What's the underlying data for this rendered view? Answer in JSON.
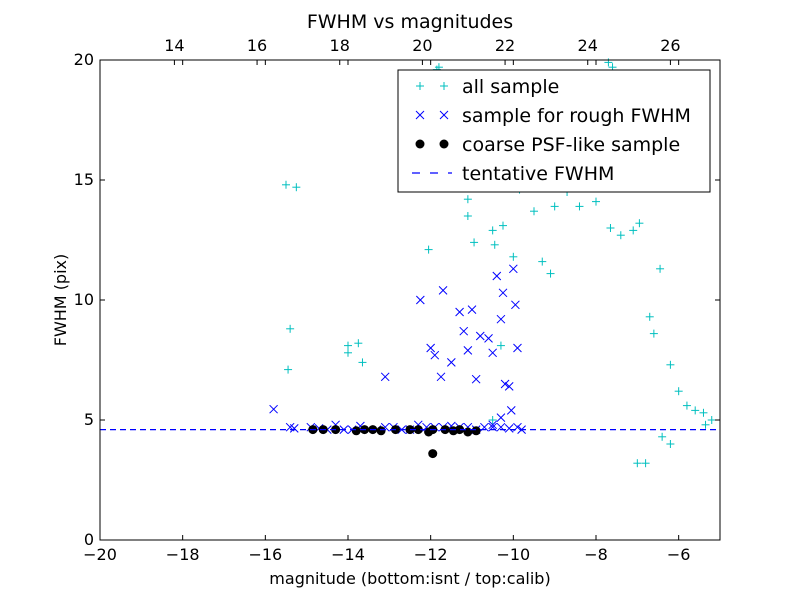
{
  "chart_data": {
    "type": "scatter",
    "title": "FWHM vs magnitudes",
    "xlabel": "magnitude (bottom:isnt / top:calib)",
    "ylabel": "FWHM (pix)",
    "xlim": [
      -20,
      -5
    ],
    "ylim": [
      0,
      20
    ],
    "xticks": [
      -20,
      -18,
      -16,
      -14,
      -12,
      -10,
      -8,
      -6
    ],
    "xtick_labels": [
      "−20",
      "−18",
      "−16",
      "−14",
      "−12",
      "−10",
      "−8",
      "−6"
    ],
    "yticks": [
      0,
      5,
      10,
      15,
      20
    ],
    "ytick_labels": [
      "0",
      "5",
      "10",
      "15",
      "20"
    ],
    "top_axis": {
      "offset": 32.2,
      "ticks": [
        14,
        16,
        18,
        20,
        22,
        24,
        26
      ],
      "tick_labels": [
        "14",
        "16",
        "18",
        "20",
        "22",
        "24",
        "26"
      ]
    },
    "grid": false,
    "legend_position": "top-right",
    "series": [
      {
        "name": "all sample",
        "marker": "+",
        "color": "#00bfbf",
        "points": [
          [
            -15.5,
            14.8
          ],
          [
            -15.25,
            14.7
          ],
          [
            -15.4,
            8.8
          ],
          [
            -15.45,
            7.1
          ],
          [
            -14.0,
            8.1
          ],
          [
            -14.0,
            7.8
          ],
          [
            -13.75,
            8.2
          ],
          [
            -13.65,
            7.4
          ],
          [
            -12.05,
            12.1
          ],
          [
            -11.85,
            19.6
          ],
          [
            -11.8,
            19.7
          ],
          [
            -11.1,
            14.2
          ],
          [
            -11.1,
            13.5
          ],
          [
            -10.95,
            12.4
          ],
          [
            -10.5,
            12.9
          ],
          [
            -10.45,
            12.3
          ],
          [
            -10.25,
            13.1
          ],
          [
            -10.0,
            11.8
          ],
          [
            -9.85,
            14.6
          ],
          [
            -9.7,
            16.0
          ],
          [
            -9.5,
            13.7
          ],
          [
            -9.2,
            15.2
          ],
          [
            -9.0,
            13.9
          ],
          [
            -8.7,
            14.5
          ],
          [
            -8.4,
            13.9
          ],
          [
            -8.0,
            14.1
          ],
          [
            -7.65,
            13.0
          ],
          [
            -7.4,
            12.7
          ],
          [
            -7.1,
            12.9
          ],
          [
            -6.95,
            13.2
          ],
          [
            -7.7,
            19.9
          ],
          [
            -7.6,
            19.7
          ],
          [
            -6.45,
            11.3
          ],
          [
            -6.7,
            9.3
          ],
          [
            -6.6,
            8.6
          ],
          [
            -6.2,
            7.3
          ],
          [
            -6.0,
            6.2
          ],
          [
            -5.8,
            5.6
          ],
          [
            -5.6,
            5.4
          ],
          [
            -5.4,
            5.3
          ],
          [
            -5.35,
            4.8
          ],
          [
            -5.2,
            5.0
          ],
          [
            -6.8,
            3.2
          ],
          [
            -7.0,
            3.2
          ],
          [
            -6.4,
            4.3
          ],
          [
            -6.2,
            4.0
          ],
          [
            -10.5,
            5.0
          ],
          [
            -10.3,
            8.1
          ],
          [
            -9.3,
            11.6
          ],
          [
            -9.1,
            11.1
          ]
        ]
      },
      {
        "name": "sample for rough FWHM",
        "marker": "x",
        "color": "#0000ff",
        "points": [
          [
            -15.8,
            5.45
          ],
          [
            -15.4,
            4.7
          ],
          [
            -15.3,
            4.65
          ],
          [
            -14.9,
            4.7
          ],
          [
            -14.7,
            4.65
          ],
          [
            -14.5,
            4.6
          ],
          [
            -14.3,
            4.8
          ],
          [
            -14.1,
            4.6
          ],
          [
            -13.9,
            4.6
          ],
          [
            -13.7,
            4.75
          ],
          [
            -13.5,
            4.6
          ],
          [
            -13.3,
            4.6
          ],
          [
            -13.1,
            4.7
          ],
          [
            -12.9,
            4.7
          ],
          [
            -12.7,
            4.6
          ],
          [
            -12.5,
            4.6
          ],
          [
            -12.3,
            4.8
          ],
          [
            -12.1,
            4.7
          ],
          [
            -11.9,
            4.7
          ],
          [
            -11.7,
            4.7
          ],
          [
            -11.5,
            4.75
          ],
          [
            -11.3,
            4.7
          ],
          [
            -11.1,
            4.7
          ],
          [
            -10.9,
            4.6
          ],
          [
            -10.7,
            4.7
          ],
          [
            -10.5,
            4.7
          ],
          [
            -10.3,
            4.7
          ],
          [
            -10.1,
            4.65
          ],
          [
            -9.9,
            4.7
          ],
          [
            -9.8,
            4.6
          ],
          [
            -13.1,
            6.8
          ],
          [
            -12.25,
            10.0
          ],
          [
            -12.0,
            8.0
          ],
          [
            -11.9,
            7.7
          ],
          [
            -11.75,
            6.8
          ],
          [
            -11.7,
            10.4
          ],
          [
            -11.5,
            7.4
          ],
          [
            -11.3,
            9.5
          ],
          [
            -11.2,
            8.7
          ],
          [
            -11.1,
            7.9
          ],
          [
            -11.0,
            9.6
          ],
          [
            -10.9,
            6.7
          ],
          [
            -10.8,
            8.5
          ],
          [
            -10.6,
            8.4
          ],
          [
            -10.5,
            7.8
          ],
          [
            -10.4,
            11.0
          ],
          [
            -10.3,
            9.2
          ],
          [
            -10.25,
            10.3
          ],
          [
            -10.2,
            6.5
          ],
          [
            -10.1,
            6.4
          ],
          [
            -10.0,
            11.3
          ],
          [
            -9.95,
            9.8
          ],
          [
            -9.9,
            8.0
          ],
          [
            -10.05,
            5.4
          ],
          [
            -10.3,
            5.1
          ],
          [
            -10.5,
            4.8
          ]
        ]
      },
      {
        "name": "coarse PSF-like sample",
        "marker": "o",
        "color": "#000000",
        "points": [
          [
            -14.85,
            4.6
          ],
          [
            -14.6,
            4.6
          ],
          [
            -14.3,
            4.6
          ],
          [
            -13.8,
            4.55
          ],
          [
            -13.6,
            4.6
          ],
          [
            -13.4,
            4.6
          ],
          [
            -13.2,
            4.55
          ],
          [
            -12.85,
            4.6
          ],
          [
            -12.5,
            4.6
          ],
          [
            -12.3,
            4.6
          ],
          [
            -12.05,
            4.5
          ],
          [
            -11.95,
            4.6
          ],
          [
            -11.65,
            4.6
          ],
          [
            -11.45,
            4.55
          ],
          [
            -11.3,
            4.6
          ],
          [
            -11.1,
            4.5
          ],
          [
            -10.9,
            4.55
          ],
          [
            -11.95,
            3.6
          ]
        ]
      },
      {
        "name": "tentative FWHM",
        "line_style": "dashed",
        "color": "#0000ff",
        "y": 4.6
      }
    ]
  }
}
